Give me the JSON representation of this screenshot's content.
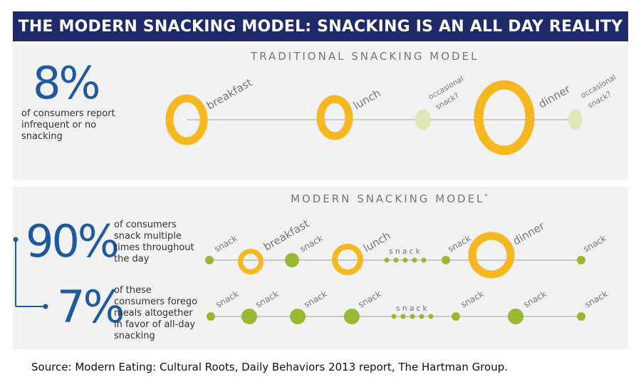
{
  "title": "THE MODERN SNACKING MODEL: SNACKING IS AN ALL DAY REALITY",
  "traditional": {
    "heading": "TRADITIONAL SNACKING MODEL",
    "stat": "8%",
    "description_lines": [
      "of consumers report",
      "infrequent or no",
      "snacking"
    ],
    "labels": {
      "breakfast": "breakfast",
      "lunch": "lunch",
      "dinner": "dinner",
      "occasional_1a": "occasional",
      "occasional_1b": "snack?",
      "occasional_2a": "occasional",
      "occasional_2b": "snack?"
    }
  },
  "modern": {
    "heading": "MODERN SNACKING MODEL",
    "heading_mark": "*",
    "stat_main": "90%",
    "desc_main_lines": [
      "of consumers",
      "snack multiple",
      "times throughout",
      "the day"
    ],
    "stat_sub": "7%",
    "desc_sub_lines": [
      "of these",
      "consumers forego",
      "meals altogether",
      "in  favor of all-day",
      "snacking"
    ],
    "labels": {
      "snack": "snack",
      "breakfast": "breakfast",
      "lunch": "lunch",
      "dinner": "dinner",
      "snack_spaced": "snack"
    }
  },
  "colors": {
    "banner": "#1f2a6b",
    "meal_ring": "#f5b820",
    "snack_dot": "#9bb832",
    "occasional_dot": "#dde8b8",
    "stat_blue": "#1f5a9e"
  },
  "source": "Source: Modern Eating: Cultural Roots, Daily Behaviors 2013 report, The Hartman Group."
}
